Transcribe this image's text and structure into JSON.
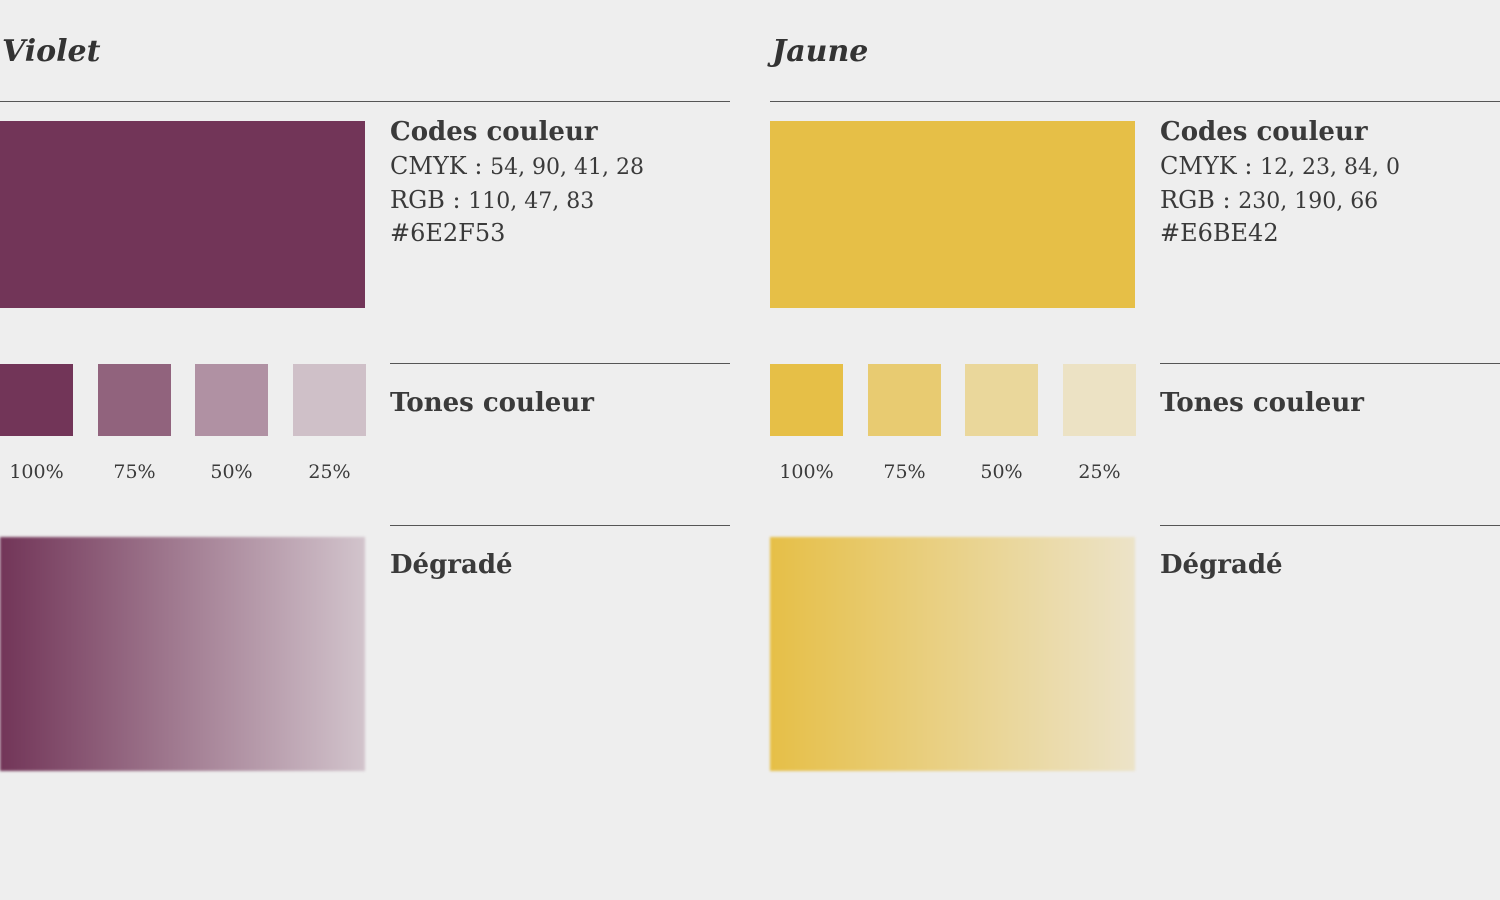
{
  "palettes": [
    {
      "title": "Violet",
      "color": "#6E2F53",
      "codes_heading": "Codes couleur",
      "cmyk_label": "CMYK :",
      "cmyk_value": "54, 90, 41, 28",
      "rgb_label": "RGB :",
      "rgb_value": "110, 47, 83",
      "hex": "#6E2F53",
      "tones_heading": "Tones couleur",
      "tones": [
        {
          "label": "100%",
          "fraction": 1.0
        },
        {
          "label": "75%",
          "fraction": 0.75
        },
        {
          "label": "50%",
          "fraction": 0.5
        },
        {
          "label": "25%",
          "fraction": 0.25
        }
      ],
      "gradient_heading": "Dégradé"
    },
    {
      "title": "Jaune",
      "color": "#E6BE42",
      "codes_heading": "Codes couleur",
      "cmyk_label": "CMYK :",
      "cmyk_value": "12, 23, 84, 0",
      "rgb_label": "RGB :",
      "rgb_value": "230, 190, 66",
      "hex": "#E6BE42",
      "tones_heading": "Tones couleur",
      "tones": [
        {
          "label": "100%",
          "fraction": 1.0
        },
        {
          "label": "75%",
          "fraction": 0.75
        },
        {
          "label": "50%",
          "fraction": 0.5
        },
        {
          "label": "25%",
          "fraction": 0.25
        }
      ],
      "gradient_heading": "Dégradé"
    }
  ]
}
